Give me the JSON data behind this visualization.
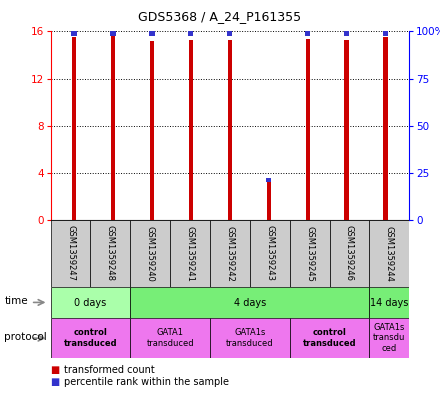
{
  "title": "GDS5368 / A_24_P161355",
  "samples": [
    "GSM1359247",
    "GSM1359248",
    "GSM1359240",
    "GSM1359241",
    "GSM1359242",
    "GSM1359243",
    "GSM1359245",
    "GSM1359246",
    "GSM1359244"
  ],
  "red_values": [
    15.5,
    15.6,
    15.2,
    15.3,
    15.3,
    3.3,
    15.4,
    15.3,
    15.5
  ],
  "blue_values": [
    16.0,
    16.0,
    16.0,
    16.0,
    16.0,
    3.6,
    16.0,
    16.0,
    16.0
  ],
  "ylim": [
    0,
    16
  ],
  "yticks_left": [
    0,
    4,
    8,
    12,
    16
  ],
  "yticks_right": [
    0,
    25,
    50,
    75,
    100
  ],
  "red_color": "#cc0000",
  "blue_color": "#3333cc",
  "sample_bg": "#cccccc",
  "time_groups": [
    {
      "label": "0 days",
      "start": 0,
      "end": 2,
      "color": "#aaffaa"
    },
    {
      "label": "4 days",
      "start": 2,
      "end": 8,
      "color": "#77ee77"
    },
    {
      "label": "14 days",
      "start": 8,
      "end": 9,
      "color": "#77ee77"
    }
  ],
  "protocol_groups": [
    {
      "label": "control\ntransduced",
      "start": 0,
      "end": 2,
      "color": "#ee77ee",
      "bold": true
    },
    {
      "label": "GATA1\ntransduced",
      "start": 2,
      "end": 4,
      "color": "#ee77ee",
      "bold": false
    },
    {
      "label": "GATA1s\ntransduced",
      "start": 4,
      "end": 6,
      "color": "#ee77ee",
      "bold": false
    },
    {
      "label": "control\ntransduced",
      "start": 6,
      "end": 8,
      "color": "#ee77ee",
      "bold": true
    },
    {
      "label": "GATA1s\ntransdu\nced",
      "start": 8,
      "end": 9,
      "color": "#ee77ee",
      "bold": false
    }
  ],
  "legend_items": [
    {
      "color": "#cc0000",
      "label": "transformed count"
    },
    {
      "color": "#3333cc",
      "label": "percentile rank within the sample"
    }
  ]
}
